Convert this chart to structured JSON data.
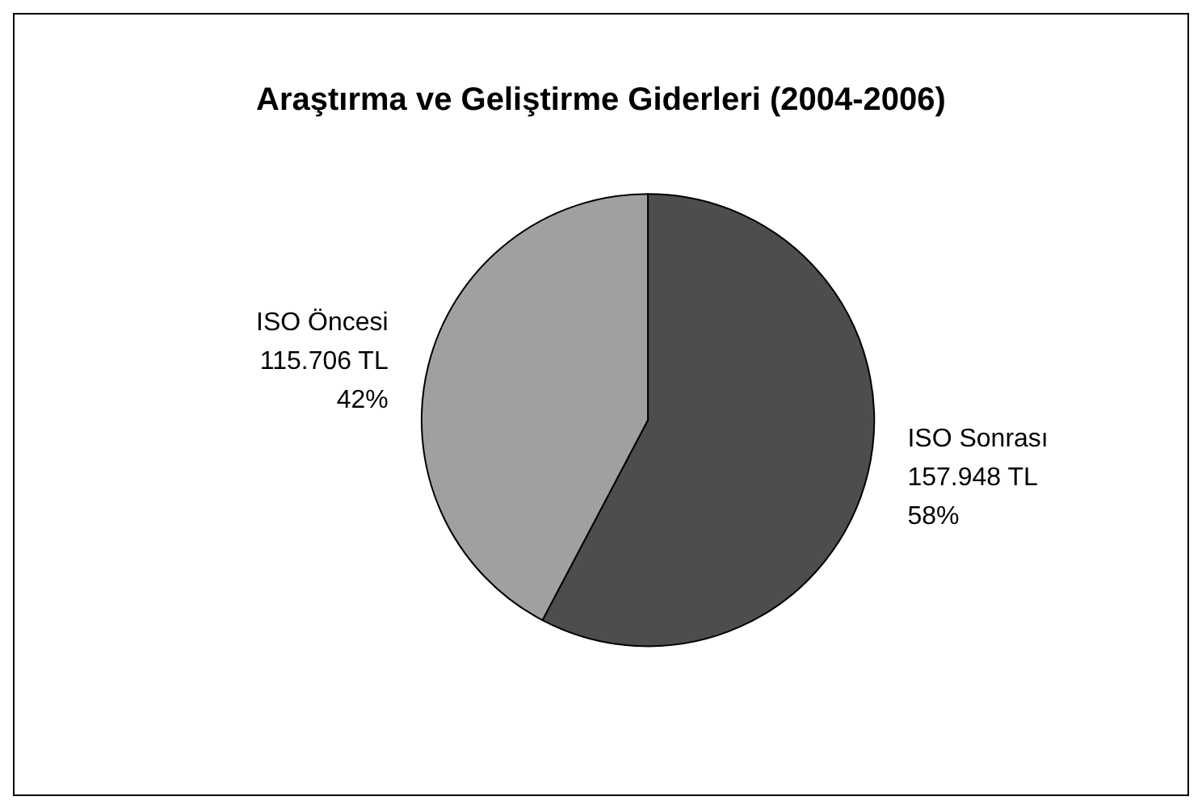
{
  "chart_data": {
    "type": "pie",
    "title": "Araştırma ve Geliştirme Giderleri (2004-2006)",
    "categories": [
      "ISO Sonrası",
      "ISO Öncesi"
    ],
    "values": [
      157948,
      115706
    ],
    "colors": [
      "#4d4d4d",
      "#a0a0a0"
    ],
    "value_labels": [
      "157.948 TL\n58%",
      "115.706 TL\n42%"
    ],
    "legend": false
  }
}
